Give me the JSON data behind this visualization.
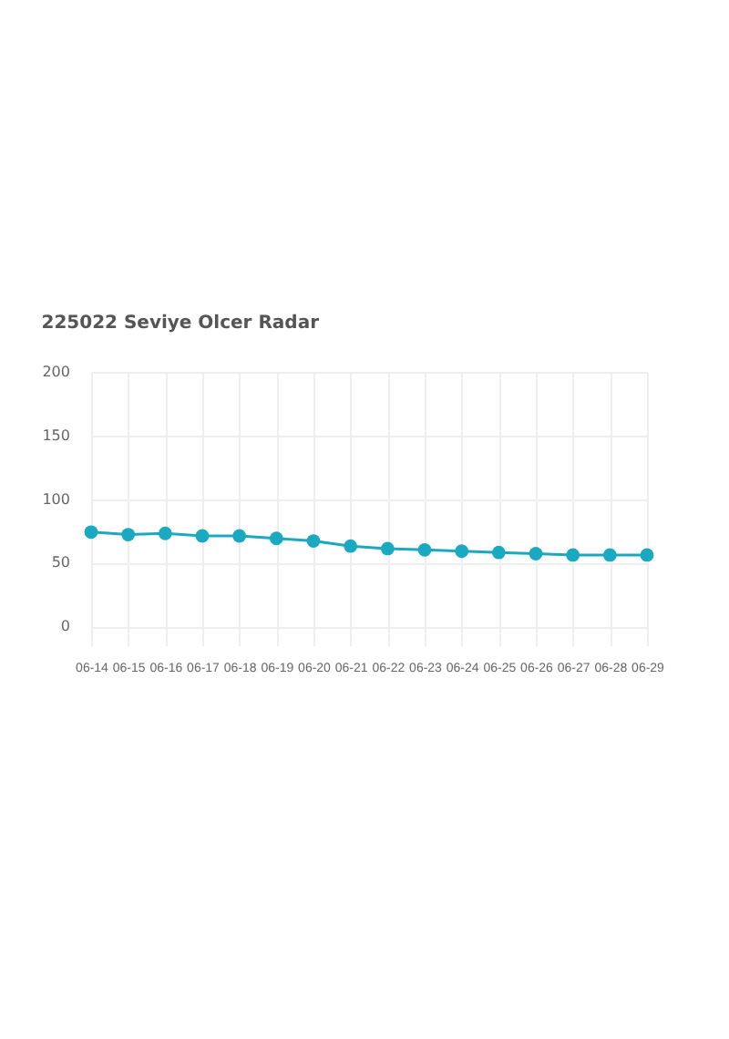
{
  "chart_data": {
    "type": "line",
    "title": "225022 Seviye Olcer Radar",
    "categories": [
      "06-14",
      "06-15",
      "06-16",
      "06-17",
      "06-18",
      "06-19",
      "06-20",
      "06-21",
      "06-22",
      "06-23",
      "06-24",
      "06-25",
      "06-26",
      "06-27",
      "06-28",
      "06-29"
    ],
    "series": [
      {
        "color": "#1ba9c1",
        "values": [
          74,
          72,
          73,
          71,
          71,
          69,
          67,
          63,
          61,
          60,
          59,
          58,
          57,
          56,
          56,
          56
        ]
      }
    ],
    "ylim": [
      -15,
      200
    ],
    "yticks": [
      0,
      50,
      100,
      150,
      200
    ],
    "grid": true,
    "marker": "circle",
    "line_style": "solid"
  }
}
